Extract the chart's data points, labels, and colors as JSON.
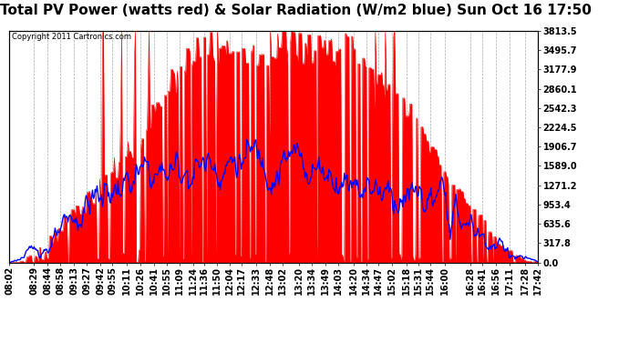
{
  "title": "Total PV Power (watts red) & Solar Radiation (W/m2 blue) Sun Oct 16 17:50",
  "copyright": "Copyright 2011 Cartronics.com",
  "ylabel_right_ticks": [
    0.0,
    317.8,
    635.6,
    953.4,
    1271.2,
    1589.0,
    1906.7,
    2224.5,
    2542.3,
    2860.1,
    3177.9,
    3495.7,
    3813.5
  ],
  "ymax": 3813.5,
  "ymin": 0.0,
  "background_color": "#ffffff",
  "plot_bg_color": "#ffffff",
  "grid_color": "#aaaaaa",
  "red_fill_color": "#ff0000",
  "blue_line_color": "#0000ff",
  "title_fontsize": 11,
  "tick_fontsize": 7,
  "x_tick_labels": [
    "08:02",
    "08:29",
    "08:44",
    "08:58",
    "09:13",
    "09:27",
    "09:42",
    "09:55",
    "10:11",
    "10:26",
    "10:41",
    "10:55",
    "11:09",
    "11:24",
    "11:36",
    "11:50",
    "12:04",
    "12:17",
    "12:33",
    "12:48",
    "13:02",
    "13:20",
    "13:34",
    "13:49",
    "14:03",
    "14:20",
    "14:34",
    "14:47",
    "15:02",
    "15:18",
    "15:31",
    "15:44",
    "16:00",
    "16:28",
    "16:41",
    "16:56",
    "17:11",
    "17:28",
    "17:42"
  ]
}
